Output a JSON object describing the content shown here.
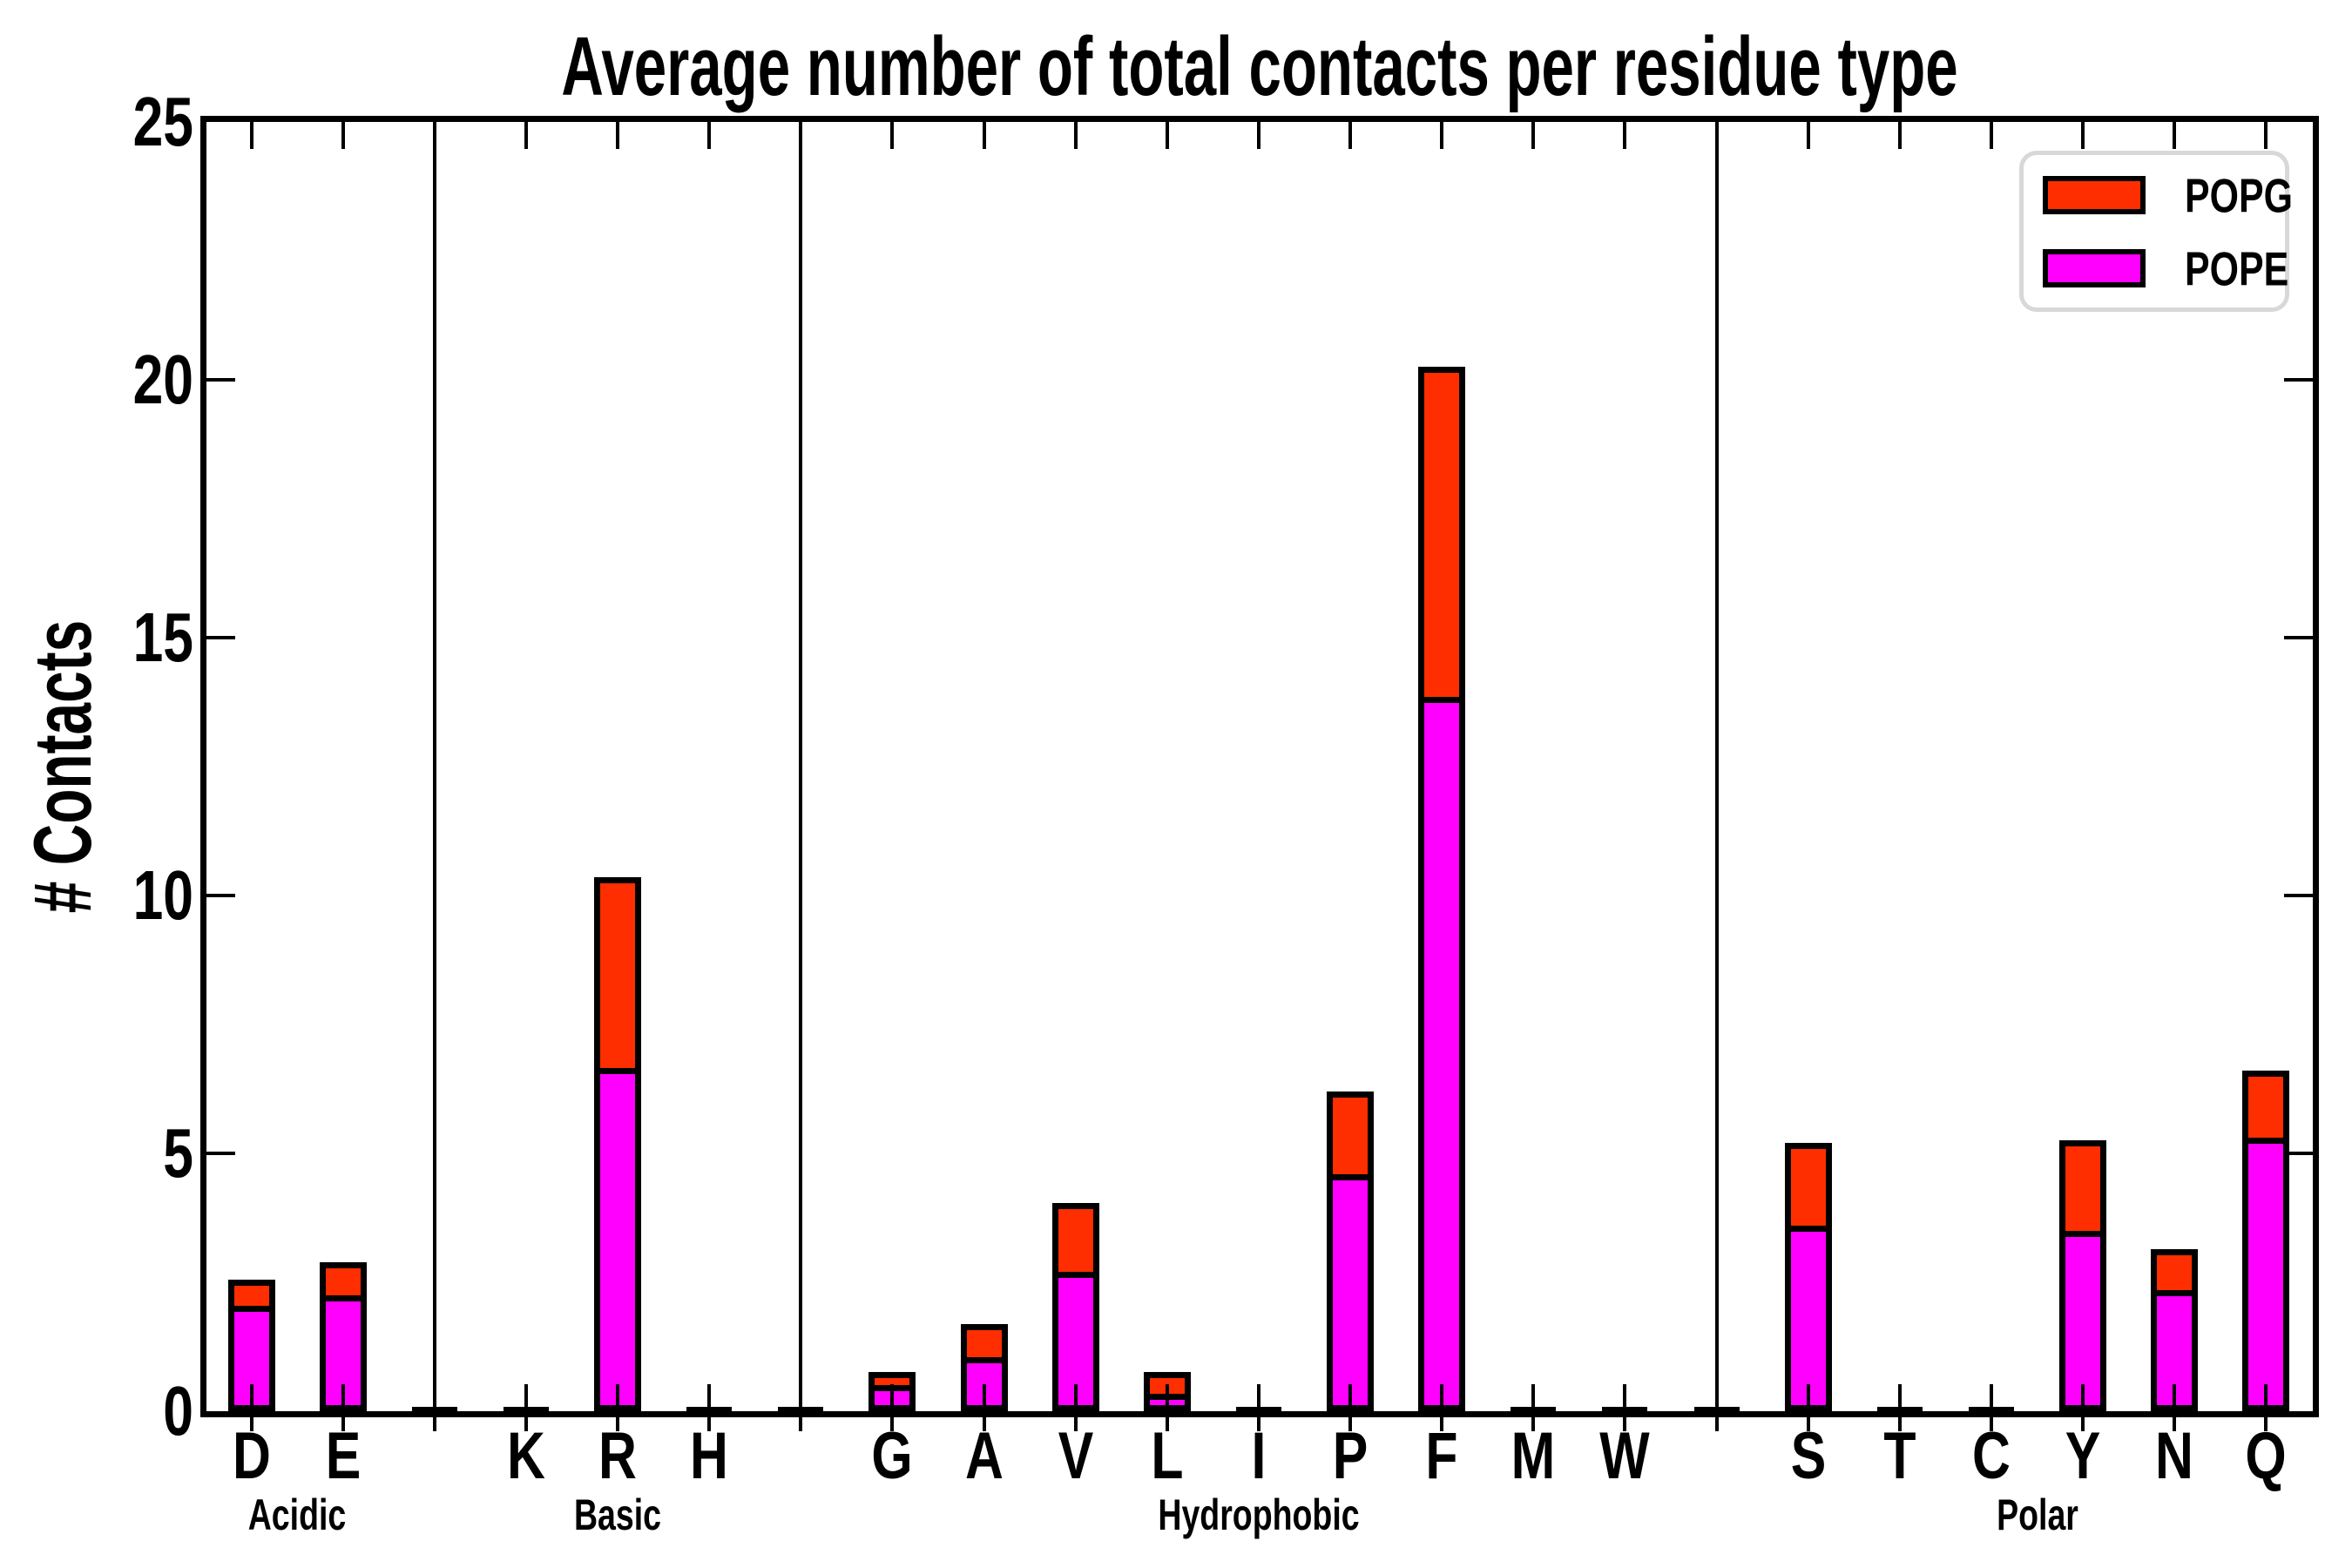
{
  "chart_data": {
    "type": "bar",
    "stacked": true,
    "title": "Average number of total contacts per residue type",
    "ylabel": "# Contacts",
    "xlabel": "",
    "ylim": [
      0,
      25
    ],
    "yticks": [
      0,
      5,
      10,
      15,
      20,
      25
    ],
    "grid": false,
    "legend_position": "upper right",
    "categories": [
      "D",
      "E",
      "K",
      "R",
      "H",
      "G",
      "A",
      "V",
      "L",
      "I",
      "P",
      "F",
      "M",
      "W",
      "S",
      "T",
      "C",
      "Y",
      "N",
      "Q"
    ],
    "category_groups": [
      "Acidic",
      "Acidic",
      "Basic",
      "Basic",
      "Basic",
      "Hydrophobic",
      "Hydrophobic",
      "Hydrophobic",
      "Hydrophobic",
      "Hydrophobic",
      "Hydrophobic",
      "Hydrophobic",
      "Hydrophobic",
      "Hydrophobic",
      "Polar",
      "Polar",
      "Polar",
      "Polar",
      "Polar",
      "Polar"
    ],
    "groups": [
      "Acidic",
      "Basic",
      "Hydrophobic",
      "Polar"
    ],
    "series": [
      {
        "name": "POPE",
        "color": "#ff00ff",
        "values": [
          2.05,
          2.25,
          0.03,
          6.65,
          0.03,
          0.5,
          1.05,
          2.7,
          0.33,
          0.02,
          4.6,
          13.85,
          0.02,
          0.03,
          3.6,
          0.03,
          0.02,
          3.5,
          2.35,
          5.3
        ]
      },
      {
        "name": "POPG",
        "color": "#ff2e00",
        "values": [
          0.5,
          0.65,
          0.02,
          3.7,
          0.02,
          0.25,
          0.65,
          1.33,
          0.42,
          0.01,
          1.6,
          6.4,
          0.01,
          0.02,
          1.6,
          0.02,
          0.01,
          1.75,
          0.8,
          1.3
        ]
      }
    ],
    "legend": [
      {
        "label": "POPG",
        "color": "#ff2e00"
      },
      {
        "label": "POPE",
        "color": "#ff00ff"
      }
    ],
    "axis_color": "#000000",
    "background_color": "#ffffff"
  }
}
